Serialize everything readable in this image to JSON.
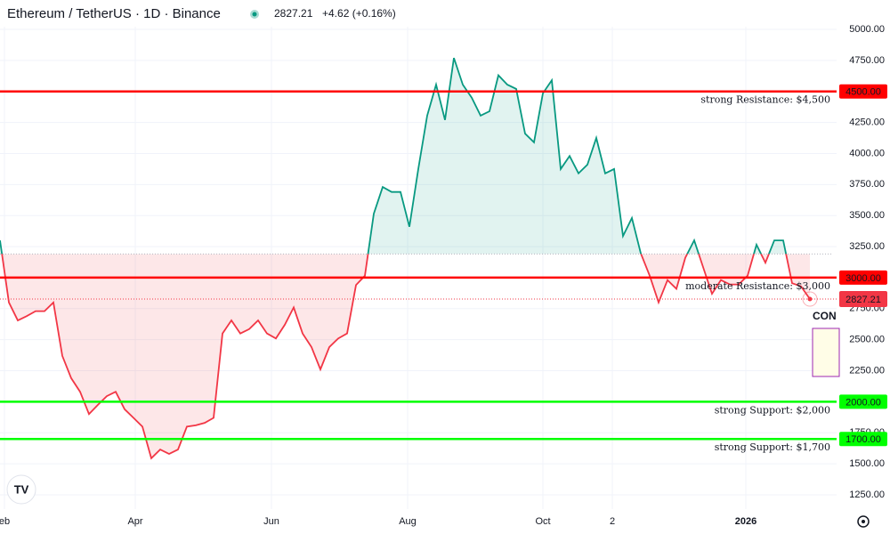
{
  "chart_data": {
    "type": "line",
    "title": "Ethereum / TetherUS · 1D · Binance",
    "change": "+4.62 (+0.16%)",
    "values": [
      3300,
      2800,
      2655,
      2690,
      2730,
      2730,
      2800,
      2370,
      2190,
      2080,
      1900,
      1975,
      2045,
      2080,
      1940,
      1870,
      1800,
      1545,
      1615,
      1580,
      1615,
      1800,
      1810,
      1830,
      1870,
      2550,
      2655,
      2550,
      2585,
      2655,
      2550,
      2510,
      2620,
      2760,
      2550,
      2440,
      2260,
      2440,
      2510,
      2550,
      2940,
      3015,
      3515,
      3730,
      3690,
      3690,
      3410,
      3875,
      4305,
      4555,
      4270,
      4770,
      4555,
      4450,
      4305,
      4340,
      4630,
      4555,
      4520,
      4160,
      4090,
      4485,
      4590,
      3875,
      3980,
      3840,
      3910,
      4125,
      3840,
      3875,
      3335,
      3480,
      3195,
      3015,
      2800,
      2980,
      2910,
      3160,
      3300,
      3085,
      2870,
      2980,
      2945,
      2945,
      3015,
      3265,
      3120,
      3300,
      3300,
      2955,
      2930,
      2827.21
    ],
    "price_label": "2827.21",
    "baseline": 3190,
    "up_color": "#089981",
    "down_color": "#f23645",
    "xlim": [
      0,
      94
    ],
    "xticks": [
      {
        "value": 0.5,
        "label": "eb"
      },
      {
        "value": 15.2,
        "label": "Apr"
      },
      {
        "value": 30.5,
        "label": "Jun"
      },
      {
        "value": 45.8,
        "label": "Aug"
      },
      {
        "value": 61,
        "label": "Oct"
      },
      {
        "value": 68.8,
        "label": "2"
      },
      {
        "value": 83.8,
        "label": "2026"
      }
    ],
    "ylim": [
      1250,
      5000
    ],
    "yticks": [
      {
        "value": 5000,
        "label": "5000.00"
      },
      {
        "value": 4750,
        "label": "4750.00"
      },
      {
        "value": 4250,
        "label": "4250.00"
      },
      {
        "value": 4000,
        "label": "4000.00"
      },
      {
        "value": 3750,
        "label": "3750.00"
      },
      {
        "value": 3500,
        "label": "3500.00"
      },
      {
        "value": 3250,
        "label": "3250.00"
      },
      {
        "value": 2750,
        "label": "2750.00"
      },
      {
        "value": 2500,
        "label": "2500.00"
      },
      {
        "value": 2250,
        "label": "2250.00"
      },
      {
        "value": 1750,
        "label": "1750.00"
      },
      {
        "value": 1500,
        "label": "1500.00"
      },
      {
        "value": 1250,
        "label": "1250.00"
      }
    ],
    "grid": true,
    "levels": [
      {
        "value": 4500,
        "axis_label": "4500.00",
        "text": "strong Resistance: $4,500",
        "color": "#ff0000"
      },
      {
        "value": 3000,
        "axis_label": "3000.00",
        "text": "moderate Resistance: $3,000",
        "color": "#ff0000"
      },
      {
        "value": 2000,
        "axis_label": "2000.00",
        "text": "strong Support: $2,000",
        "color": "#00ff00"
      },
      {
        "value": 1700,
        "axis_label": "1700.00",
        "text": "strong Support: $1,700",
        "color": "#00ff00"
      }
    ],
    "annotation": "CON"
  }
}
